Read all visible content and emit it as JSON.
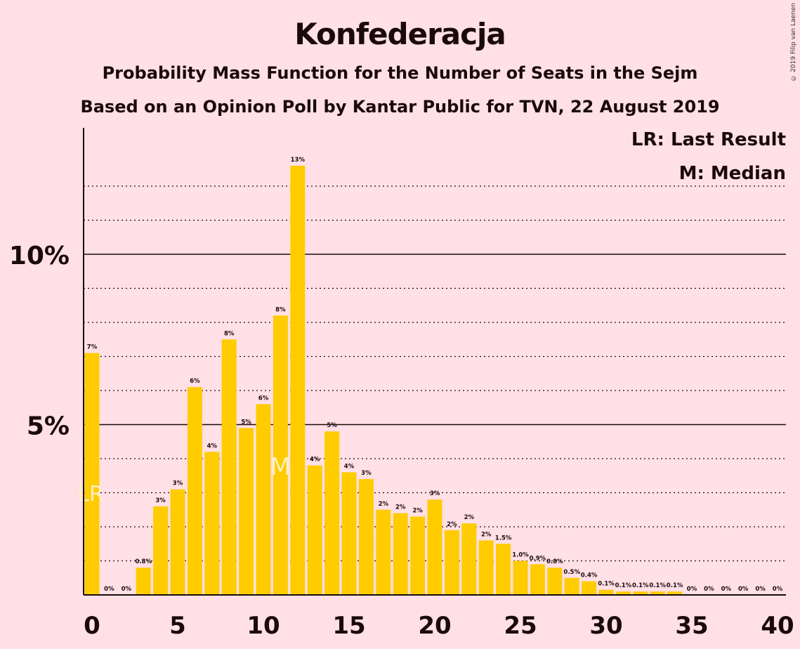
{
  "chart_data": {
    "type": "bar",
    "title": "Konfederacja",
    "subtitle": "Probability Mass Function for the Number of Seats in the Sejm",
    "subtitle2": "Based on an Opinion Poll by Kantar Public for TVN, 22 August 2019",
    "copyright": "© 2019 Filip van Laenen",
    "legend": [
      "LR: Last Result",
      "M: Median"
    ],
    "xlabel": "",
    "ylabel": "",
    "x": [
      0,
      1,
      2,
      3,
      4,
      5,
      6,
      7,
      8,
      9,
      10,
      11,
      12,
      13,
      14,
      15,
      16,
      17,
      18,
      19,
      20,
      21,
      22,
      23,
      24,
      25,
      26,
      27,
      28,
      29,
      30,
      31,
      32,
      33,
      34,
      35,
      36,
      37,
      38,
      39,
      40
    ],
    "values": [
      7.1,
      0,
      0,
      0.8,
      2.6,
      3.1,
      6.1,
      4.2,
      7.5,
      4.9,
      5.6,
      8.2,
      12.6,
      3.8,
      4.8,
      3.6,
      3.4,
      2.5,
      2.4,
      2.3,
      2.8,
      1.9,
      2.1,
      1.6,
      1.5,
      1.0,
      0.9,
      0.8,
      0.5,
      0.4,
      0.15,
      0.1,
      0.1,
      0.1,
      0.1,
      0,
      0,
      0,
      0,
      0,
      0
    ],
    "labels": [
      "7%",
      "0%",
      "0%",
      "0.8%",
      "3%",
      "3%",
      "6%",
      "4%",
      "8%",
      "5%",
      "6%",
      "8%",
      "13%",
      "4%",
      "5%",
      "4%",
      "3%",
      "2%",
      "2%",
      "2%",
      "3%",
      "2%",
      "2%",
      "2%",
      "1.5%",
      "1.0%",
      "0.9%",
      "0.8%",
      "0.5%",
      "0.4%",
      "0.1%",
      "0.1%",
      "0.1%",
      "0.1%",
      "0.1%",
      "0%",
      "0%",
      "0%",
      "0%",
      "0%",
      "0%"
    ],
    "ylim": [
      0,
      13.8
    ],
    "ytick_labels": [
      {
        "value": 5,
        "label": "5%"
      },
      {
        "value": 10,
        "label": "10%"
      }
    ],
    "xtick_labels": [
      {
        "value": 0,
        "label": "0"
      },
      {
        "value": 5,
        "label": "5"
      },
      {
        "value": 10,
        "label": "10"
      },
      {
        "value": 15,
        "label": "15"
      },
      {
        "value": 20,
        "label": "20"
      },
      {
        "value": 25,
        "label": "25"
      },
      {
        "value": 30,
        "label": "30"
      },
      {
        "value": 35,
        "label": "35"
      },
      {
        "value": 40,
        "label": "40"
      }
    ],
    "last_result_seat": 0,
    "last_result_marker": "LR",
    "median_seat": 11,
    "median_marker": "M",
    "grid": "dotted every 1%, solid at 5% and 10%",
    "colors": {
      "bar": "#ffcc00",
      "background": "#ffe0e6",
      "text": "#1a0a0a",
      "marker": "#fff0c0"
    }
  }
}
